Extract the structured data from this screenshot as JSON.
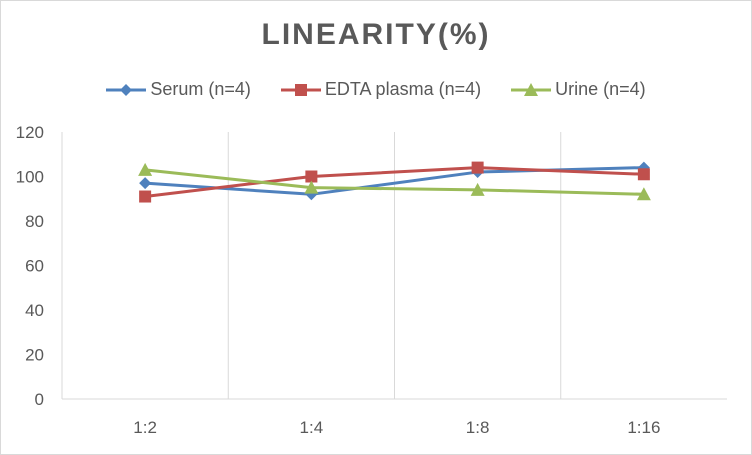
{
  "chart_data": {
    "type": "line",
    "title": "LINEARITY(%)",
    "xlabel": "",
    "ylabel": "",
    "categories": [
      "1:2",
      "1:4",
      "1:8",
      "1:16"
    ],
    "ylim": [
      0,
      120
    ],
    "yticks": [
      0,
      20,
      40,
      60,
      80,
      100,
      120
    ],
    "grid": "vertical",
    "legend_position": "top",
    "series": [
      {
        "name": "Serum (n=4)",
        "values": [
          97,
          92,
          102,
          104
        ],
        "color": "#4f81bd",
        "marker": "diamond"
      },
      {
        "name": "EDTA plasma (n=4)",
        "values": [
          91,
          100,
          104,
          101
        ],
        "color": "#c0504d",
        "marker": "square"
      },
      {
        "name": "Urine (n=4)",
        "values": [
          103,
          95,
          94,
          92
        ],
        "color": "#9bbb59",
        "marker": "triangle"
      }
    ]
  }
}
